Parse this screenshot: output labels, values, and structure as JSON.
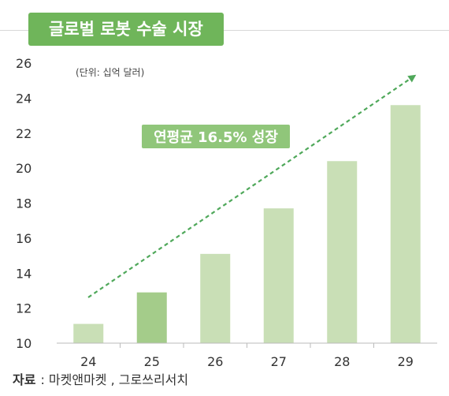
{
  "chart_data": {
    "type": "bar",
    "title": "글로벌 로봇 수술 시장",
    "unit_label": "(단위: 십억 달러)",
    "categories": [
      "24",
      "25",
      "26",
      "27",
      "28",
      "29"
    ],
    "values": [
      11.1,
      12.9,
      15.1,
      17.7,
      20.4,
      23.6
    ],
    "ylim": [
      10,
      26
    ],
    "yticks": [
      10,
      12,
      14,
      16,
      18,
      20,
      22,
      24,
      26
    ],
    "annotation": "연평균 16.5% 성장",
    "colors": {
      "bar": "#c9dfb6",
      "bar_highlight": "#a4cc8a",
      "title_bg": "#6fb55a",
      "annotation_bg": "#90c67a",
      "arrow": "#4fa85a"
    },
    "highlight_index": 1
  },
  "source": {
    "label": "자료",
    "text": ": 마켓앤마켓 , 그로쓰리서치"
  }
}
